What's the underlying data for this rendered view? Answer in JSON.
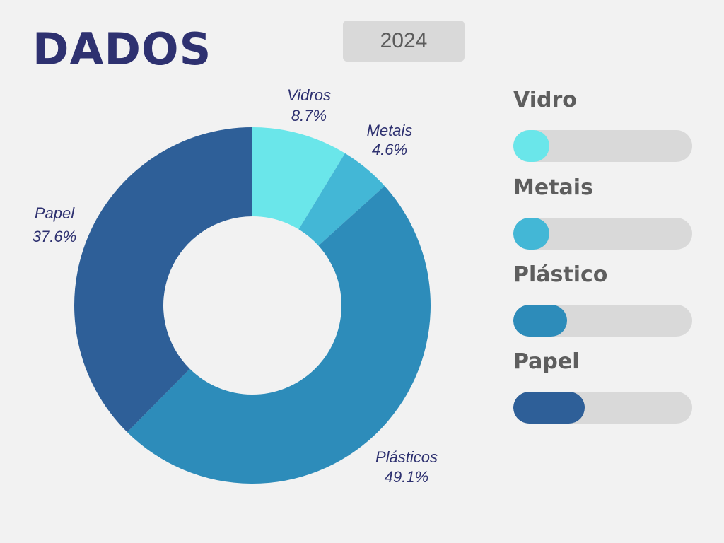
{
  "header": {
    "title": "DADOS",
    "year": "2024"
  },
  "chart_data": {
    "type": "pie",
    "donut": true,
    "title": "",
    "slices": [
      {
        "label": "Vidros",
        "value": 8.7,
        "display": "8.7%",
        "color": "#6ae6ea"
      },
      {
        "label": "Metais",
        "value": 4.6,
        "display": "4.6%",
        "color": "#43b7d6"
      },
      {
        "label": "Plásticos",
        "value": 49.1,
        "display": "49.1%",
        "color": "#2d8cba"
      },
      {
        "label": "Papel",
        "value": 37.6,
        "display": "37.6%",
        "color": "#2e5f98"
      }
    ]
  },
  "legend": {
    "items": [
      {
        "label": "Vidro",
        "color": "#6ae6ea",
        "level": 0.2
      },
      {
        "label": "Metais",
        "color": "#43b7d6",
        "level": 0.2
      },
      {
        "label": "Plástico",
        "color": "#2d8cba",
        "level": 0.3
      },
      {
        "label": "Papel",
        "color": "#2e5f98",
        "level": 0.4
      }
    ]
  }
}
